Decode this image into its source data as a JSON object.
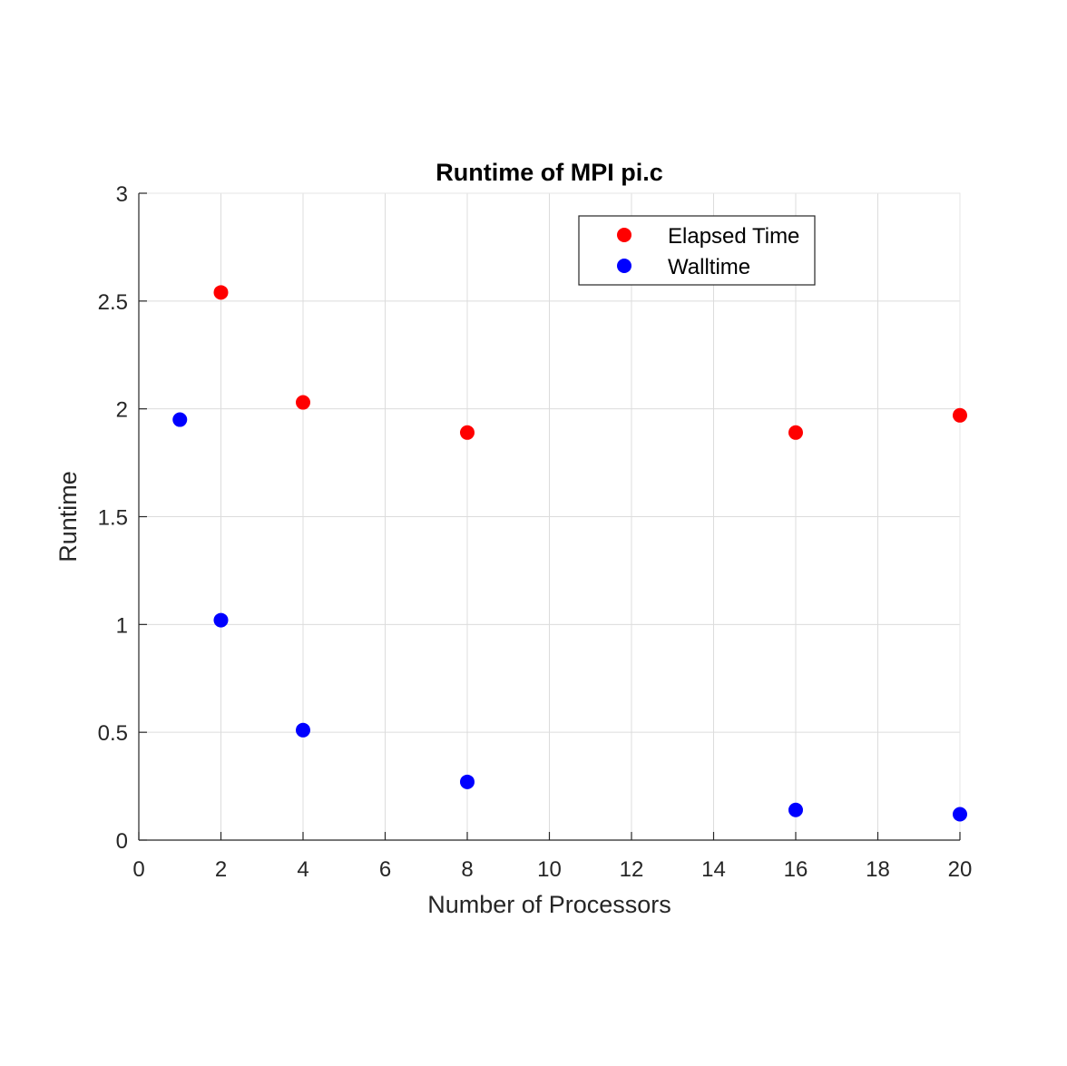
{
  "chart_data": {
    "type": "scatter",
    "title": "Runtime of MPI pi.c",
    "xlabel": "Number of Processors",
    "ylabel": "Runtime",
    "xlim": [
      0,
      20
    ],
    "ylim": [
      0,
      3
    ],
    "x_ticks": [
      0,
      2,
      4,
      6,
      8,
      10,
      12,
      14,
      16,
      18,
      20
    ],
    "x_tick_labels": [
      "0",
      "2",
      "4",
      "6",
      "8",
      "10",
      "12",
      "14",
      "16",
      "18",
      "20"
    ],
    "y_ticks": [
      0,
      0.5,
      1,
      1.5,
      2,
      2.5,
      3
    ],
    "y_tick_labels": [
      "0",
      "0.5",
      "1",
      "1.5",
      "2",
      "2.5",
      "3"
    ],
    "grid": true,
    "legend_position": "top-right",
    "series": [
      {
        "name": "Elapsed Time",
        "color": "#ff0000",
        "x": [
          2,
          4,
          8,
          16,
          20
        ],
        "y": [
          2.54,
          2.03,
          1.89,
          1.89,
          1.97
        ]
      },
      {
        "name": "Walltime",
        "color": "#0000ff",
        "x": [
          1,
          2,
          4,
          8,
          16,
          20
        ],
        "y": [
          1.95,
          1.02,
          0.51,
          0.27,
          0.14,
          0.12
        ]
      }
    ]
  }
}
